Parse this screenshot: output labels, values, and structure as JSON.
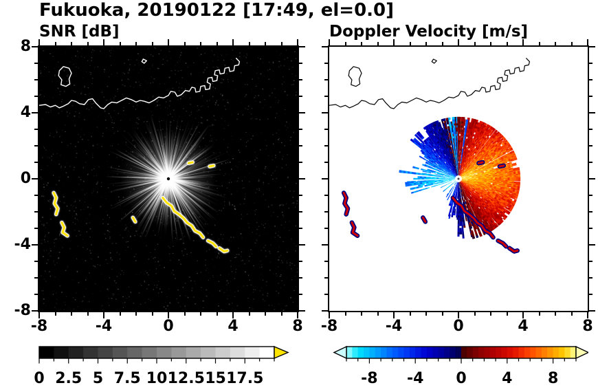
{
  "title": "Fukuoka, 20190122 [17:49, el=0.0]",
  "chart_data": [
    {
      "type": "heatmap",
      "title": "SNR [dB]",
      "xlabel": "",
      "ylabel": "",
      "xlim": [
        -8,
        8
      ],
      "ylim": [
        -8,
        8
      ],
      "xticks": [
        -8,
        -4,
        0,
        4,
        8
      ],
      "xtick_labels": [
        "-8",
        "-4",
        "0",
        "4",
        "8"
      ],
      "yticks": [
        8,
        4,
        0,
        -4,
        -8
      ],
      "ytick_labels": [
        "8",
        "4",
        "0",
        "-4",
        "-8"
      ],
      "minor_tick_step": 1,
      "background": "#000000",
      "radar_center": [
        0,
        0
      ],
      "colorbar": {
        "vmin": 0,
        "vmax": 20,
        "tick_values": [
          0,
          2.5,
          5,
          7.5,
          10,
          12.5,
          15,
          17.5
        ],
        "tick_labels": [
          "0",
          "2.5",
          "5",
          "7.5",
          "10",
          "12.5",
          "15",
          "17.5"
        ],
        "minor_step": 1.25,
        "stops": [
          [
            0,
            "#000000"
          ],
          [
            20,
            "#ffffff"
          ]
        ],
        "over_arrow_color": "#ffe400",
        "cells": 16
      },
      "render": {
        "seed": 11,
        "rays": 520,
        "bright_rays": 26,
        "speckles": 6500,
        "max_ray_units": 4.2,
        "clutter_color": "#ffe400",
        "clutter_halo": "#ffffff",
        "coast_color": "#ffffff"
      }
    },
    {
      "type": "heatmap",
      "title": "Doppler Velocity [m/s]",
      "xlabel": "",
      "ylabel": "",
      "xlim": [
        -8,
        8
      ],
      "ylim": [
        -8,
        8
      ],
      "xticks": [
        -8,
        -4,
        0,
        4,
        8
      ],
      "xtick_labels": [
        "-8",
        "-4",
        "0",
        "4",
        "8"
      ],
      "yticks": [
        8,
        4,
        0,
        -4,
        -8
      ],
      "ytick_labels": [
        "8",
        "4",
        "0",
        "-4",
        "-8"
      ],
      "minor_tick_step": 1,
      "background": "#ffffff",
      "radar_center": [
        0,
        0
      ],
      "colorbar": {
        "vmin": -10,
        "vmax": 10,
        "tick_values": [
          -8,
          -4,
          0,
          4,
          8
        ],
        "tick_labels": [
          "-8",
          "-4",
          "0",
          "4",
          "8"
        ],
        "minor_step": 1,
        "stops": [
          [
            -10,
            "#b4fdff"
          ],
          [
            -9,
            "#00e4ff"
          ],
          [
            -7.5,
            "#00a6ff"
          ],
          [
            -6,
            "#0062ff"
          ],
          [
            -4.5,
            "#0030f0"
          ],
          [
            -3,
            "#0000cf"
          ],
          [
            -1.6,
            "#00009a"
          ],
          [
            -0.25,
            "#000055"
          ],
          [
            0.25,
            "#4d0000"
          ],
          [
            1.6,
            "#8b0000"
          ],
          [
            3,
            "#b40000"
          ],
          [
            4.5,
            "#e01000"
          ],
          [
            6,
            "#ff4800"
          ],
          [
            7.5,
            "#ff8a00"
          ],
          [
            9,
            "#ffce00"
          ],
          [
            10,
            "#ffff9e"
          ]
        ],
        "under_arrow_color": "#ccffff",
        "over_arrow_color": "#ffffb4",
        "cells": 40
      },
      "render": {
        "seed": 7,
        "echo_lobes": [
          [
            15,
            50,
            3.0
          ],
          [
            65,
            30,
            2.2
          ],
          [
            105,
            25,
            2.0
          ],
          [
            140,
            22,
            1.7
          ],
          [
            185,
            15,
            2.3
          ],
          [
            315,
            32,
            2.1
          ],
          [
            270,
            28,
            1.1
          ]
        ],
        "echo_base": 0.5,
        "echo_rmax": 3.7,
        "gap_lobes": [
          [
            205,
            35,
            0.55
          ],
          [
            235,
            25,
            0.45
          ],
          [
            165,
            12,
            0.25
          ],
          [
            85,
            8,
            0.15
          ]
        ],
        "gap_base": 0.04,
        "velocity_model": {
          "amplitude": 9.2,
          "direction_deg": 12,
          "taper_a": 1.05,
          "taper_b": 0.38,
          "noise": 2.6
        },
        "north_spike": {
          "mu": 95,
          "sig": 12,
          "prob": 0.35,
          "delta": -8
        },
        "clutter_color": "#d00000",
        "clutter_halo": "#000080",
        "coast_color": "#000000"
      }
    }
  ],
  "overlays": {
    "coastlines": [
      [
        [
          -8.0,
          4.45
        ],
        [
          -7.6,
          4.5
        ],
        [
          -7.3,
          4.35
        ],
        [
          -7.0,
          4.45
        ],
        [
          -6.75,
          4.3
        ],
        [
          -6.5,
          4.4
        ],
        [
          -6.2,
          4.55
        ],
        [
          -6.0,
          4.75
        ],
        [
          -5.75,
          4.7
        ],
        [
          -5.5,
          4.55
        ],
        [
          -5.2,
          4.5
        ],
        [
          -4.95,
          4.8
        ],
        [
          -4.7,
          4.85
        ],
        [
          -4.5,
          4.6
        ],
        [
          -4.2,
          4.3
        ],
        [
          -4.0,
          4.25
        ],
        [
          -3.75,
          4.5
        ],
        [
          -3.5,
          4.65
        ],
        [
          -3.2,
          4.6
        ],
        [
          -2.9,
          4.75
        ],
        [
          -2.6,
          4.9
        ],
        [
          -2.3,
          4.8
        ],
        [
          -2.0,
          4.65
        ],
        [
          -1.75,
          4.75
        ],
        [
          -1.5,
          4.7
        ],
        [
          -1.2,
          4.6
        ],
        [
          -0.9,
          4.75
        ],
        [
          -0.6,
          4.95
        ],
        [
          -0.3,
          4.9
        ],
        [
          0.0,
          5.05
        ],
        [
          0.15,
          5.3
        ],
        [
          0.4,
          5.25
        ],
        [
          0.55,
          5.0
        ],
        [
          0.8,
          5.1
        ],
        [
          1.05,
          5.35
        ],
        [
          1.3,
          5.3
        ],
        [
          1.45,
          5.55
        ],
        [
          1.65,
          5.5
        ],
        [
          1.7,
          5.25
        ],
        [
          1.95,
          5.3
        ],
        [
          2.0,
          5.6
        ],
        [
          2.25,
          5.65
        ],
        [
          2.3,
          5.4
        ],
        [
          2.55,
          5.45
        ],
        [
          2.6,
          5.75
        ],
        [
          2.4,
          5.85
        ],
        [
          2.45,
          6.1
        ],
        [
          2.7,
          6.15
        ],
        [
          2.75,
          5.9
        ],
        [
          3.0,
          5.95
        ],
        [
          3.05,
          6.25
        ],
        [
          2.85,
          6.3
        ],
        [
          2.9,
          6.55
        ],
        [
          3.15,
          6.6
        ],
        [
          3.2,
          6.35
        ],
        [
          3.45,
          6.4
        ],
        [
          3.5,
          6.7
        ],
        [
          3.75,
          6.75
        ],
        [
          3.8,
          6.5
        ],
        [
          4.05,
          6.55
        ],
        [
          4.1,
          6.85
        ],
        [
          4.35,
          6.9
        ],
        [
          4.4,
          7.1
        ],
        [
          4.2,
          7.3
        ]
      ],
      [
        [
          -6.75,
          6.55
        ],
        [
          -6.5,
          6.8
        ],
        [
          -6.15,
          6.7
        ],
        [
          -6.0,
          6.4
        ],
        [
          -6.15,
          6.05
        ],
        [
          -6.1,
          5.75
        ],
        [
          -6.35,
          5.6
        ],
        [
          -6.65,
          5.7
        ],
        [
          -6.6,
          6.0
        ],
        [
          -6.8,
          6.25
        ],
        [
          -6.75,
          6.55
        ]
      ],
      [
        [
          -1.55,
          7.25
        ],
        [
          -1.35,
          7.15
        ],
        [
          -1.5,
          7.0
        ],
        [
          -1.65,
          7.1
        ],
        [
          -1.55,
          7.25
        ]
      ]
    ],
    "clutter_arcs": [
      [
        [
          -7.1,
          -0.85
        ],
        [
          -6.95,
          -1.15
        ],
        [
          -7.05,
          -1.5
        ],
        [
          -6.85,
          -1.8
        ],
        [
          -6.95,
          -2.15
        ]
      ],
      [
        [
          -6.6,
          -2.65
        ],
        [
          -6.45,
          -2.95
        ],
        [
          -6.55,
          -3.25
        ],
        [
          -6.25,
          -3.45
        ]
      ],
      [
        [
          -0.35,
          -1.15
        ],
        [
          -0.1,
          -1.45
        ],
        [
          0.2,
          -1.65
        ],
        [
          0.35,
          -1.95
        ],
        [
          0.65,
          -2.15
        ],
        [
          0.95,
          -2.4
        ],
        [
          1.15,
          -2.65
        ],
        [
          1.45,
          -2.85
        ],
        [
          1.65,
          -3.15
        ],
        [
          1.95,
          -3.3
        ],
        [
          2.15,
          -3.55
        ]
      ],
      [
        [
          2.45,
          -3.75
        ],
        [
          2.75,
          -3.9
        ],
        [
          2.95,
          -4.1
        ]
      ],
      [
        [
          3.15,
          -4.2
        ],
        [
          3.45,
          -4.4
        ],
        [
          3.65,
          -4.35
        ]
      ],
      [
        [
          -2.2,
          -2.35
        ],
        [
          -2.05,
          -2.6
        ]
      ],
      [
        [
          1.25,
          0.95
        ],
        [
          1.5,
          1.0
        ]
      ],
      [
        [
          2.55,
          0.75
        ],
        [
          2.8,
          0.8
        ]
      ]
    ]
  }
}
